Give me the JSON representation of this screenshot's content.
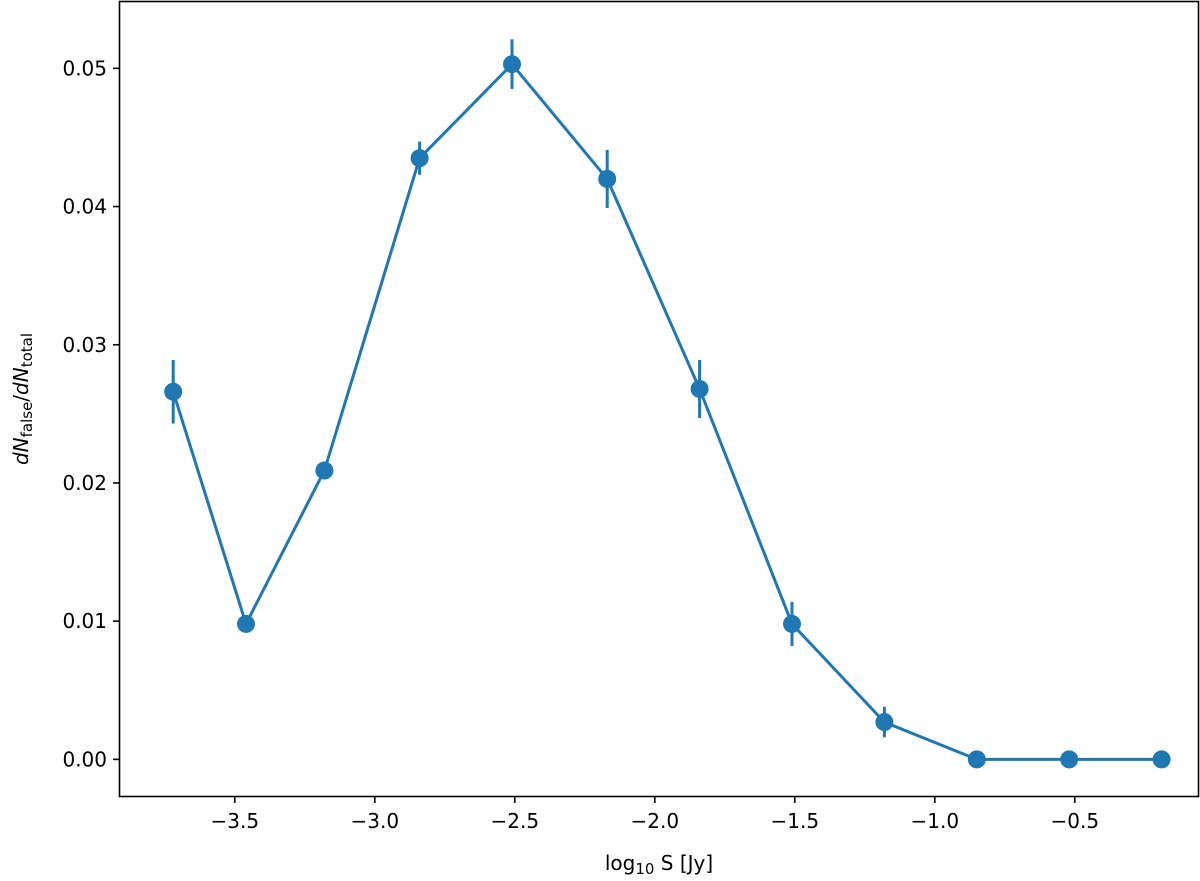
{
  "chart_data": {
    "type": "line",
    "xlabel_main": "log",
    "xlabel_sub": "10",
    "xlabel_rest": " S [Jy]",
    "ylabel_d1": "d",
    "ylabel_N1": "N",
    "ylabel_sub1": "false",
    "ylabel_slash": "/",
    "ylabel_d2": "d",
    "ylabel_N2": "N",
    "ylabel_sub2": "total",
    "xlim": [
      -3.91,
      -0.06
    ],
    "ylim": [
      -0.00265,
      0.0548
    ],
    "x_ticks": [
      -3.5,
      -3.0,
      -2.5,
      -2.0,
      -1.5,
      -1.0,
      -0.5
    ],
    "x_tick_labels": [
      "−3.5",
      "−3.0",
      "−2.5",
      "−2.0",
      "−1.5",
      "−1.0",
      "−0.5"
    ],
    "y_ticks": [
      0.0,
      0.01,
      0.02,
      0.03,
      0.04,
      0.05
    ],
    "y_tick_labels": [
      "0.00",
      "0.01",
      "0.02",
      "0.03",
      "0.04",
      "0.05"
    ],
    "grid": false,
    "color": "#1f77b4",
    "series": [
      {
        "x": [
          -3.72,
          -3.46,
          -3.18,
          -2.84,
          -2.51,
          -2.17,
          -1.84,
          -1.51,
          -1.18,
          -0.85,
          -0.52,
          -0.19
        ],
        "y": [
          0.0266,
          0.0098,
          0.0209,
          0.0435,
          0.0503,
          0.042,
          0.0268,
          0.0098,
          0.0027,
          0.0,
          0.0,
          0.0
        ],
        "yerr": [
          0.0023,
          0.0,
          0.0,
          0.0012,
          0.0018,
          0.0021,
          0.0021,
          0.0016,
          0.0011,
          0.0,
          0.0,
          0.0
        ]
      }
    ]
  }
}
